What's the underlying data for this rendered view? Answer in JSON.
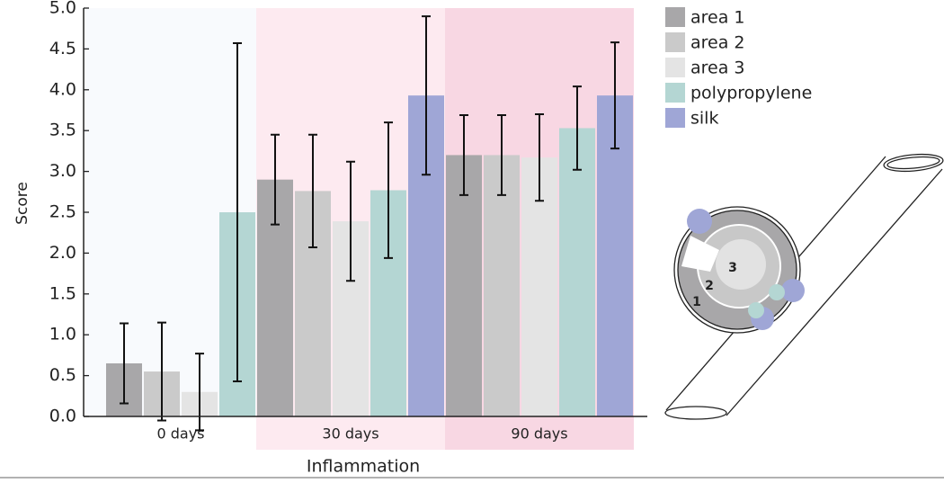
{
  "chart_data": {
    "type": "bar",
    "y_label": "Score",
    "x_label": "Inflammation",
    "categories": [
      "0 days",
      "30 days",
      "90 days"
    ],
    "background_colors": [
      "#f8fafd",
      "#fdeaf0",
      "#f8d7e3"
    ],
    "series": [
      {
        "name": "area 1",
        "color": "#a8a7a9",
        "values": [
          0.65,
          2.9,
          3.2
        ],
        "errors": [
          0.49,
          0.55,
          0.49
        ]
      },
      {
        "name": "area 2",
        "color": "#cacaca",
        "values": [
          0.55,
          2.76,
          3.2
        ],
        "errors": [
          0.6,
          0.69,
          0.49
        ]
      },
      {
        "name": "area 3",
        "color": "#e4e4e4",
        "values": [
          0.3,
          2.39,
          3.17
        ],
        "errors": [
          0.47,
          0.73,
          0.53
        ]
      },
      {
        "name": "polypropylene",
        "color": "#b4d6d3",
        "values": [
          2.5,
          2.77,
          3.53
        ],
        "errors": [
          2.07,
          0.83,
          0.51
        ]
      },
      {
        "name": "silk",
        "color": "#9fa6d6",
        "values": [
          null,
          3.93,
          3.93
        ],
        "errors": [
          null,
          0.97,
          0.65
        ]
      }
    ],
    "ylim": [
      0,
      5
    ],
    "yticks": [
      {
        "value": 0,
        "label": "0.0"
      },
      0.5,
      {
        "value": 1,
        "label": "1.0"
      },
      1.5,
      {
        "value": 2,
        "label": "2.0"
      },
      2.5,
      {
        "value": 3,
        "label": "3.0"
      },
      3.5,
      {
        "value": 4,
        "label": "4.0"
      },
      4.5,
      {
        "value": 5,
        "label": "5.0"
      }
    ]
  },
  "diagram": {
    "labels": [
      "1",
      "2",
      "3"
    ]
  }
}
